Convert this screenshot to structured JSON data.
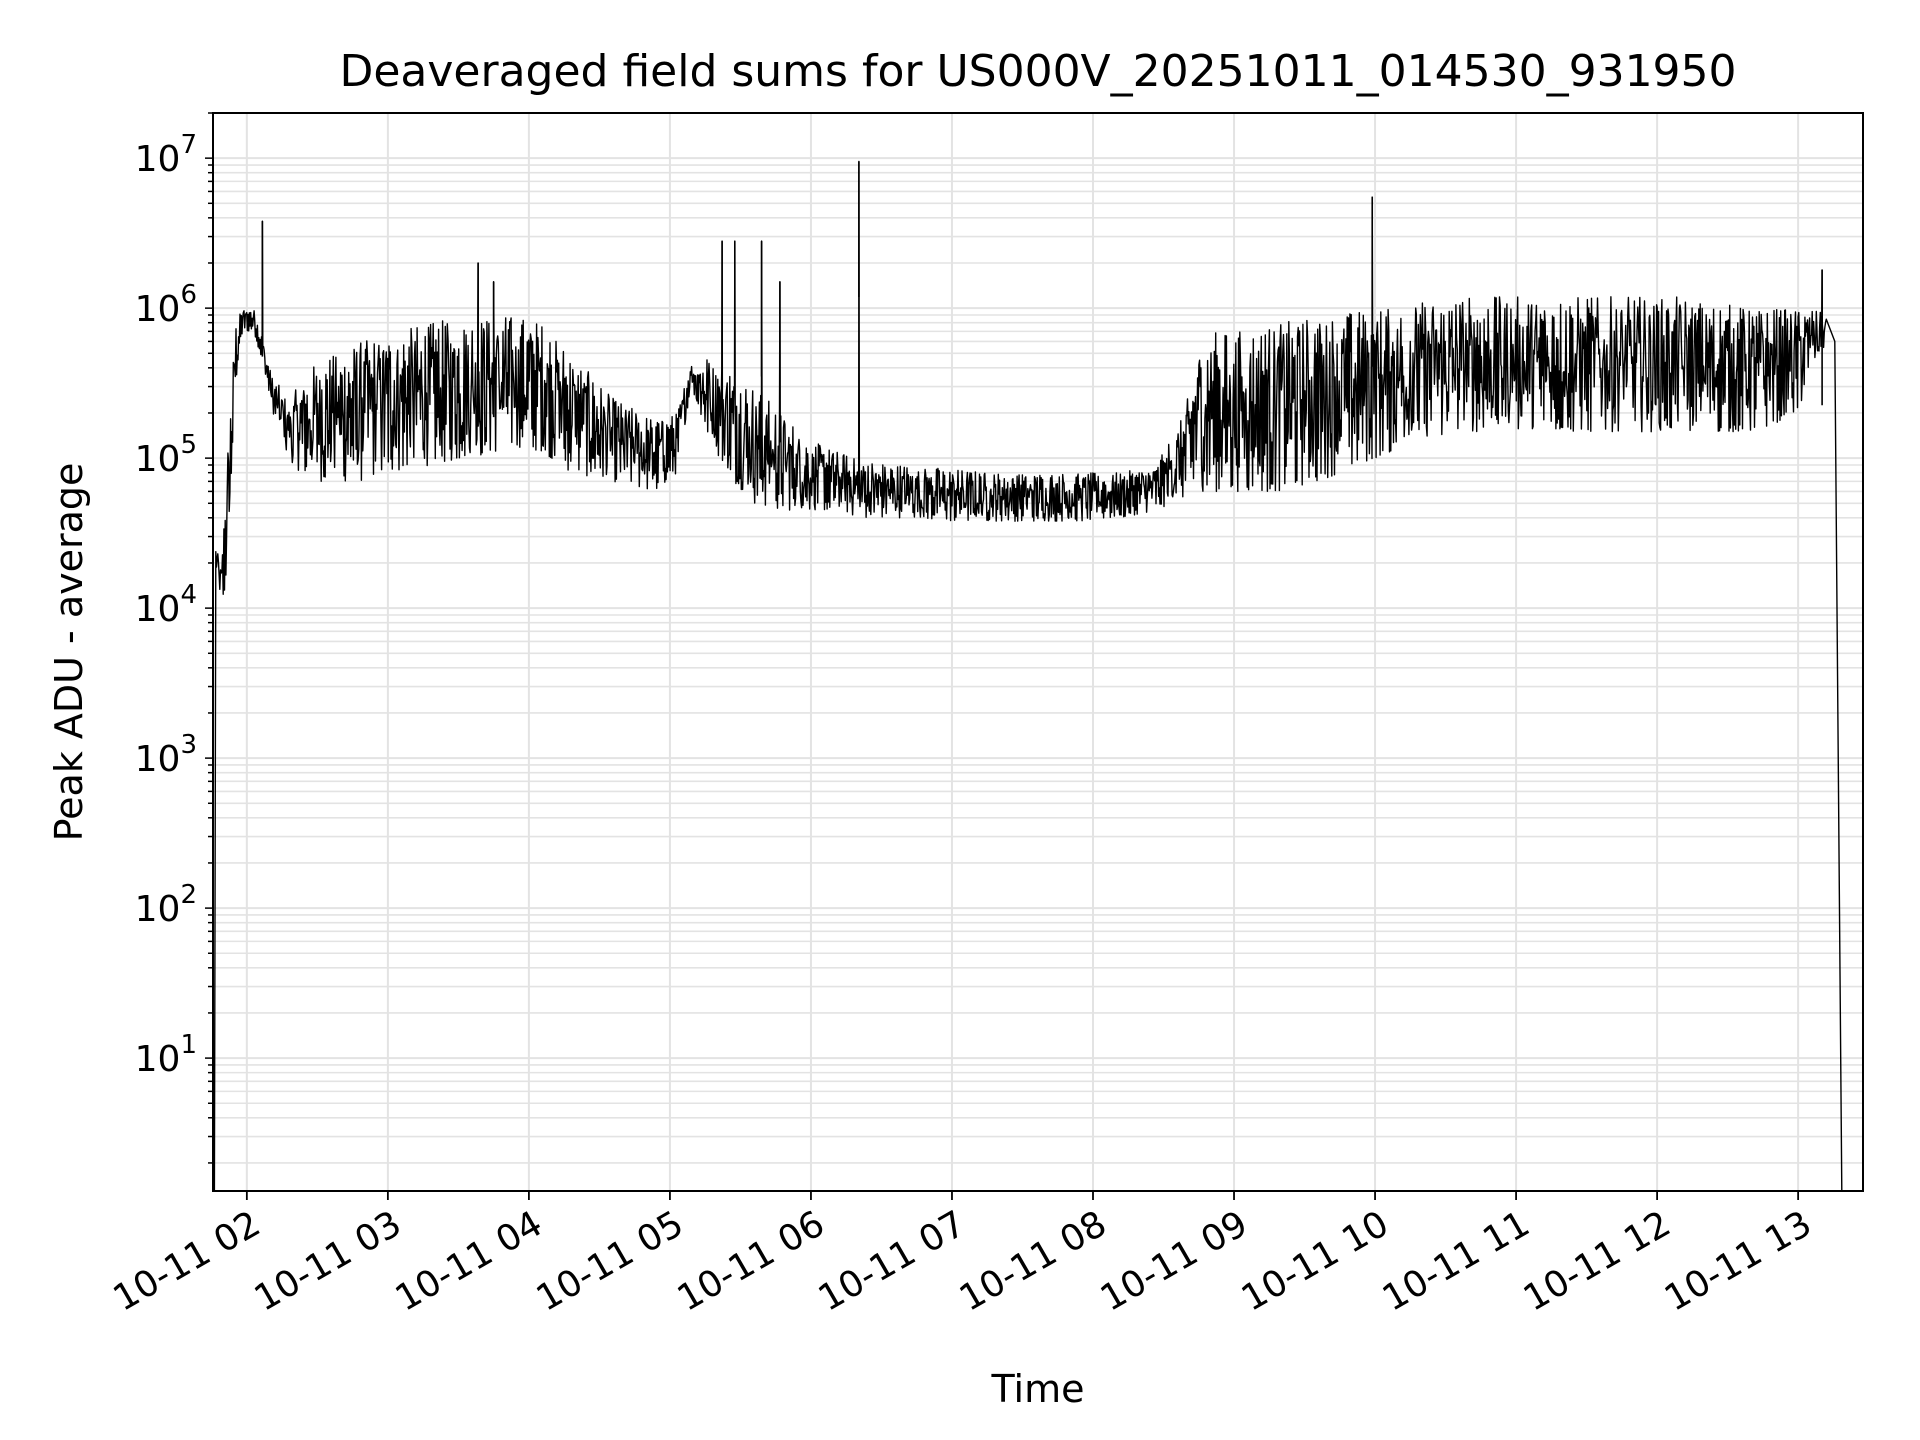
{
  "chart_data": {
    "type": "line",
    "title": "Deaveraged field sums for US000V_20251011_014530_931950",
    "xlabel": "Time",
    "ylabel": "Peak ADU - average",
    "yscale": "log",
    "ylim": [
      1.3,
      20000000
    ],
    "x_unit": "hours since 2025-10-11 00:00",
    "xlim": [
      1.76,
      13.46
    ],
    "x_ticks": [
      {
        "value": 2,
        "label": "10-11 02"
      },
      {
        "value": 3,
        "label": "10-11 03"
      },
      {
        "value": 4,
        "label": "10-11 04"
      },
      {
        "value": 5,
        "label": "10-11 05"
      },
      {
        "value": 6,
        "label": "10-11 06"
      },
      {
        "value": 7,
        "label": "10-11 07"
      },
      {
        "value": 8,
        "label": "10-11 08"
      },
      {
        "value": 9,
        "label": "10-11 09"
      },
      {
        "value": 10,
        "label": "10-11 10"
      },
      {
        "value": 11,
        "label": "10-11 11"
      },
      {
        "value": 12,
        "label": "10-11 12"
      },
      {
        "value": 13,
        "label": "10-11 13"
      }
    ],
    "y_ticks": [
      {
        "value": 10,
        "base": "10",
        "exp": "1"
      },
      {
        "value": 100,
        "base": "10",
        "exp": "2"
      },
      {
        "value": 1000,
        "base": "10",
        "exp": "3"
      },
      {
        "value": 10000,
        "base": "10",
        "exp": "4"
      },
      {
        "value": 100000,
        "base": "10",
        "exp": "5"
      },
      {
        "value": 1000000,
        "base": "10",
        "exp": "6"
      },
      {
        "value": 10000000,
        "base": "10",
        "exp": "7"
      }
    ],
    "grid": true,
    "line_color": "#000000",
    "grid_color": "#e3e3e3",
    "series": [
      {
        "name": "field_sum",
        "envelope": {
          "x": [
            1.78,
            1.82,
            1.87,
            1.92,
            1.97,
            2.05,
            2.12,
            2.18,
            2.3,
            2.5,
            2.8,
            3.0,
            3.3,
            3.6,
            3.9,
            4.1,
            4.3,
            4.6,
            4.9,
            5.05,
            5.15,
            5.25,
            5.35,
            5.45,
            5.6,
            5.8,
            6.0,
            6.2,
            6.35,
            6.45,
            6.7,
            7.0,
            7.3,
            7.6,
            7.9,
            8.2,
            8.45,
            8.65,
            8.75,
            8.85,
            9.0,
            9.3,
            9.6,
            10.0,
            10.3,
            10.6,
            10.9,
            11.2,
            11.5,
            11.8,
            12.1,
            12.4,
            12.7,
            13.0,
            13.1,
            13.2
          ],
          "low": [
            20000,
            8000,
            20000,
            300000,
            700000,
            700000,
            400000,
            200000,
            90000,
            70000,
            70000,
            80000,
            90000,
            100000,
            120000,
            110000,
            80000,
            70000,
            60000,
            80000,
            300000,
            150000,
            100000,
            70000,
            50000,
            45000,
            45000,
            45000,
            40000,
            40000,
            40000,
            38000,
            38000,
            38000,
            38000,
            40000,
            45000,
            55000,
            60000,
            60000,
            60000,
            60000,
            70000,
            100000,
            130000,
            150000,
            150000,
            150000,
            150000,
            150000,
            150000,
            150000,
            150000,
            200000,
            400000,
            500000
          ],
          "high": [
            25000,
            20000,
            150000,
            800000,
            1000000,
            1000000,
            600000,
            350000,
            250000,
            450000,
            600000,
            700000,
            800000,
            900000,
            900000,
            800000,
            500000,
            250000,
            180000,
            200000,
            450000,
            500000,
            450000,
            400000,
            300000,
            200000,
            130000,
            110000,
            100000,
            95000,
            90000,
            85000,
            80000,
            80000,
            80000,
            80000,
            90000,
            200000,
            600000,
            700000,
            700000,
            800000,
            900000,
            1000000,
            1100000,
            1200000,
            1200000,
            1200000,
            1200000,
            1200000,
            1200000,
            1100000,
            1000000,
            1000000,
            1000000,
            900000
          ]
        },
        "spikes": [
          {
            "x": 2.11,
            "y": 3800000
          },
          {
            "x": 3.64,
            "y": 2000000
          },
          {
            "x": 3.75,
            "y": 1500000
          },
          {
            "x": 5.37,
            "y": 2800000
          },
          {
            "x": 5.46,
            "y": 2800000
          },
          {
            "x": 5.65,
            "y": 2800000
          },
          {
            "x": 5.78,
            "y": 1500000
          },
          {
            "x": 6.34,
            "y": 9500000
          },
          {
            "x": 9.98,
            "y": 5500000
          },
          {
            "x": 13.17,
            "y": 1800000
          }
        ],
        "edge_drops": [
          {
            "x": 1.77,
            "y": 1.3
          },
          {
            "x": 13.31,
            "y": 1.3
          }
        ]
      }
    ]
  }
}
